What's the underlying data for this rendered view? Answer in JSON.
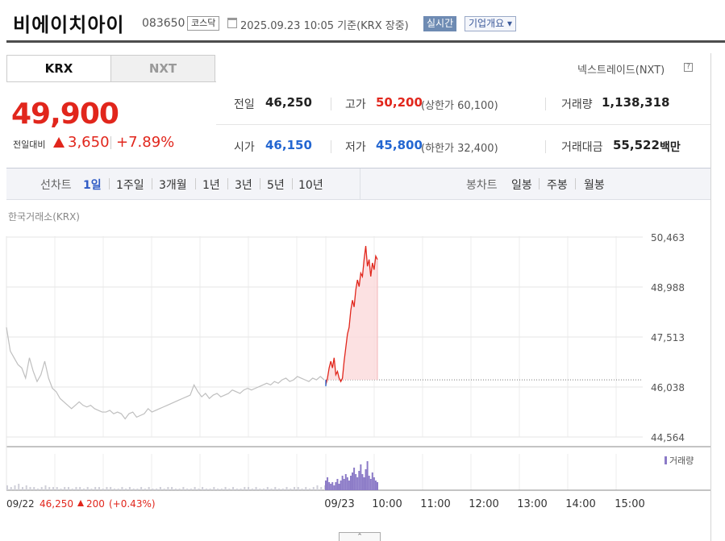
{
  "header": {
    "title": "비에이치아이",
    "code": "083650",
    "market": "코스닥",
    "datetime": "2025.09.23 10:05  기준(KRX 장중)",
    "realtime_label": "실시간",
    "overview_label": "기업개요 ▾"
  },
  "tabs": [
    {
      "label": "KRX",
      "selected": true
    },
    {
      "label": "NXT",
      "selected": false
    }
  ],
  "nxt_link": "넥스트레이드(NXT)",
  "quote": {
    "price": "49,900",
    "prev_label": "전일대비",
    "change": "3,650",
    "rate": "+7.89%",
    "prev_close_label": "전일",
    "prev_close": "46,250",
    "high_label": "고가",
    "high": "50,200",
    "upper_limit": "(상한가 60,100)",
    "volume_label": "거래량",
    "volume": "1,138,318",
    "open_label": "시가",
    "open": "46,150",
    "low_label": "저가",
    "low": "45,800",
    "lower_limit": "(하한가 32,400)",
    "amount_label": "거래대금",
    "amount": "55,522",
    "amount_unit": "백만"
  },
  "nav": {
    "line_label": "선차트",
    "line_periods": [
      {
        "label": "1일",
        "selected": true
      },
      {
        "label": "1주일",
        "selected": false
      },
      {
        "label": "3개월",
        "selected": false
      },
      {
        "label": "1년",
        "selected": false
      },
      {
        "label": "3년",
        "selected": false
      },
      {
        "label": "5년",
        "selected": false
      },
      {
        "label": "10년",
        "selected": false
      }
    ],
    "candle_label": "봉차트",
    "candle_periods": [
      {
        "label": "일봉"
      },
      {
        "label": "주봉"
      },
      {
        "label": "월봉"
      }
    ]
  },
  "chart_source": "한국거래소(KRX)",
  "colors": {
    "up": "#e1261c",
    "down": "#2366d1",
    "volume": "#8b7ac7",
    "prev_line": "#bfbfbf"
  },
  "chart_data": {
    "type": "line",
    "y_ticks": [
      "50,463",
      "48,988",
      "47,513",
      "46,038",
      "44,564"
    ],
    "ylim": [
      44564,
      50463
    ],
    "x_ticks": [
      "09/23",
      "10:00",
      "11:00",
      "12:00",
      "13:00",
      "14:00",
      "15:00"
    ],
    "reference_price": 46250,
    "prev_day_caption": {
      "date": "09/22",
      "close": "46,250",
      "change": "200",
      "rate": "(+0.43%)"
    },
    "volume_label": "거래량",
    "prev_day_series": [
      47800,
      47100,
      46900,
      46700,
      46600,
      46300,
      46900,
      46500,
      46200,
      46400,
      46800,
      46300,
      46000,
      45900,
      45700,
      45600,
      45500,
      45400,
      45500,
      45600,
      45500,
      45450,
      45500,
      45400,
      45350,
      45300,
      45300,
      45350,
      45250,
      45300,
      45250,
      45100,
      45250,
      45300,
      45150,
      45200,
      45250,
      45400,
      45300,
      45350,
      45400,
      45450,
      45500,
      45550,
      45600,
      45650,
      45700,
      45750,
      45800,
      46100,
      45900,
      45750,
      45850,
      45700,
      45800,
      45850,
      45750,
      45800,
      45850,
      45950,
      45900,
      45850,
      45950,
      46000,
      45950,
      46000,
      46050,
      46100,
      46150,
      46100,
      46200,
      46150,
      46250,
      46300,
      46200,
      46250,
      46350,
      46300,
      46250,
      46200,
      46300,
      46250,
      46350,
      46250
    ],
    "today_series": [
      46100,
      46300,
      46600,
      46800,
      46600,
      46900,
      46400,
      46500,
      46300,
      46200,
      46300,
      46800,
      47200,
      47600,
      47800,
      48300,
      48600,
      48400,
      48900,
      49200,
      49000,
      49400,
      49300,
      49800,
      50200,
      49600,
      49800,
      49300,
      49700,
      49500,
      49900,
      49800
    ],
    "prev_volume": [
      3,
      2,
      3,
      4,
      2,
      3,
      2,
      2,
      1,
      2,
      3,
      2,
      2,
      2,
      1,
      2,
      2,
      1,
      2,
      2,
      1,
      2,
      1,
      2,
      2,
      1,
      2,
      2,
      1,
      1,
      2,
      1,
      2,
      1,
      1,
      2,
      1,
      2,
      1,
      1,
      2,
      1,
      2,
      2,
      1,
      1,
      2,
      1,
      1,
      2,
      1,
      2,
      1,
      1,
      2,
      1,
      1,
      2,
      1,
      2,
      1,
      1,
      2,
      2,
      1,
      2,
      1,
      1,
      2,
      1,
      2,
      1,
      1,
      2,
      1,
      2,
      2,
      1,
      2,
      1,
      2,
      3,
      2,
      3
    ],
    "today_volume": [
      6,
      8,
      5,
      4,
      5,
      3,
      5,
      7,
      4,
      6,
      9,
      7,
      10,
      8,
      6,
      9,
      11,
      14,
      10,
      8,
      12,
      16,
      10,
      8,
      13,
      18,
      9,
      7,
      11,
      8,
      6,
      5
    ]
  }
}
